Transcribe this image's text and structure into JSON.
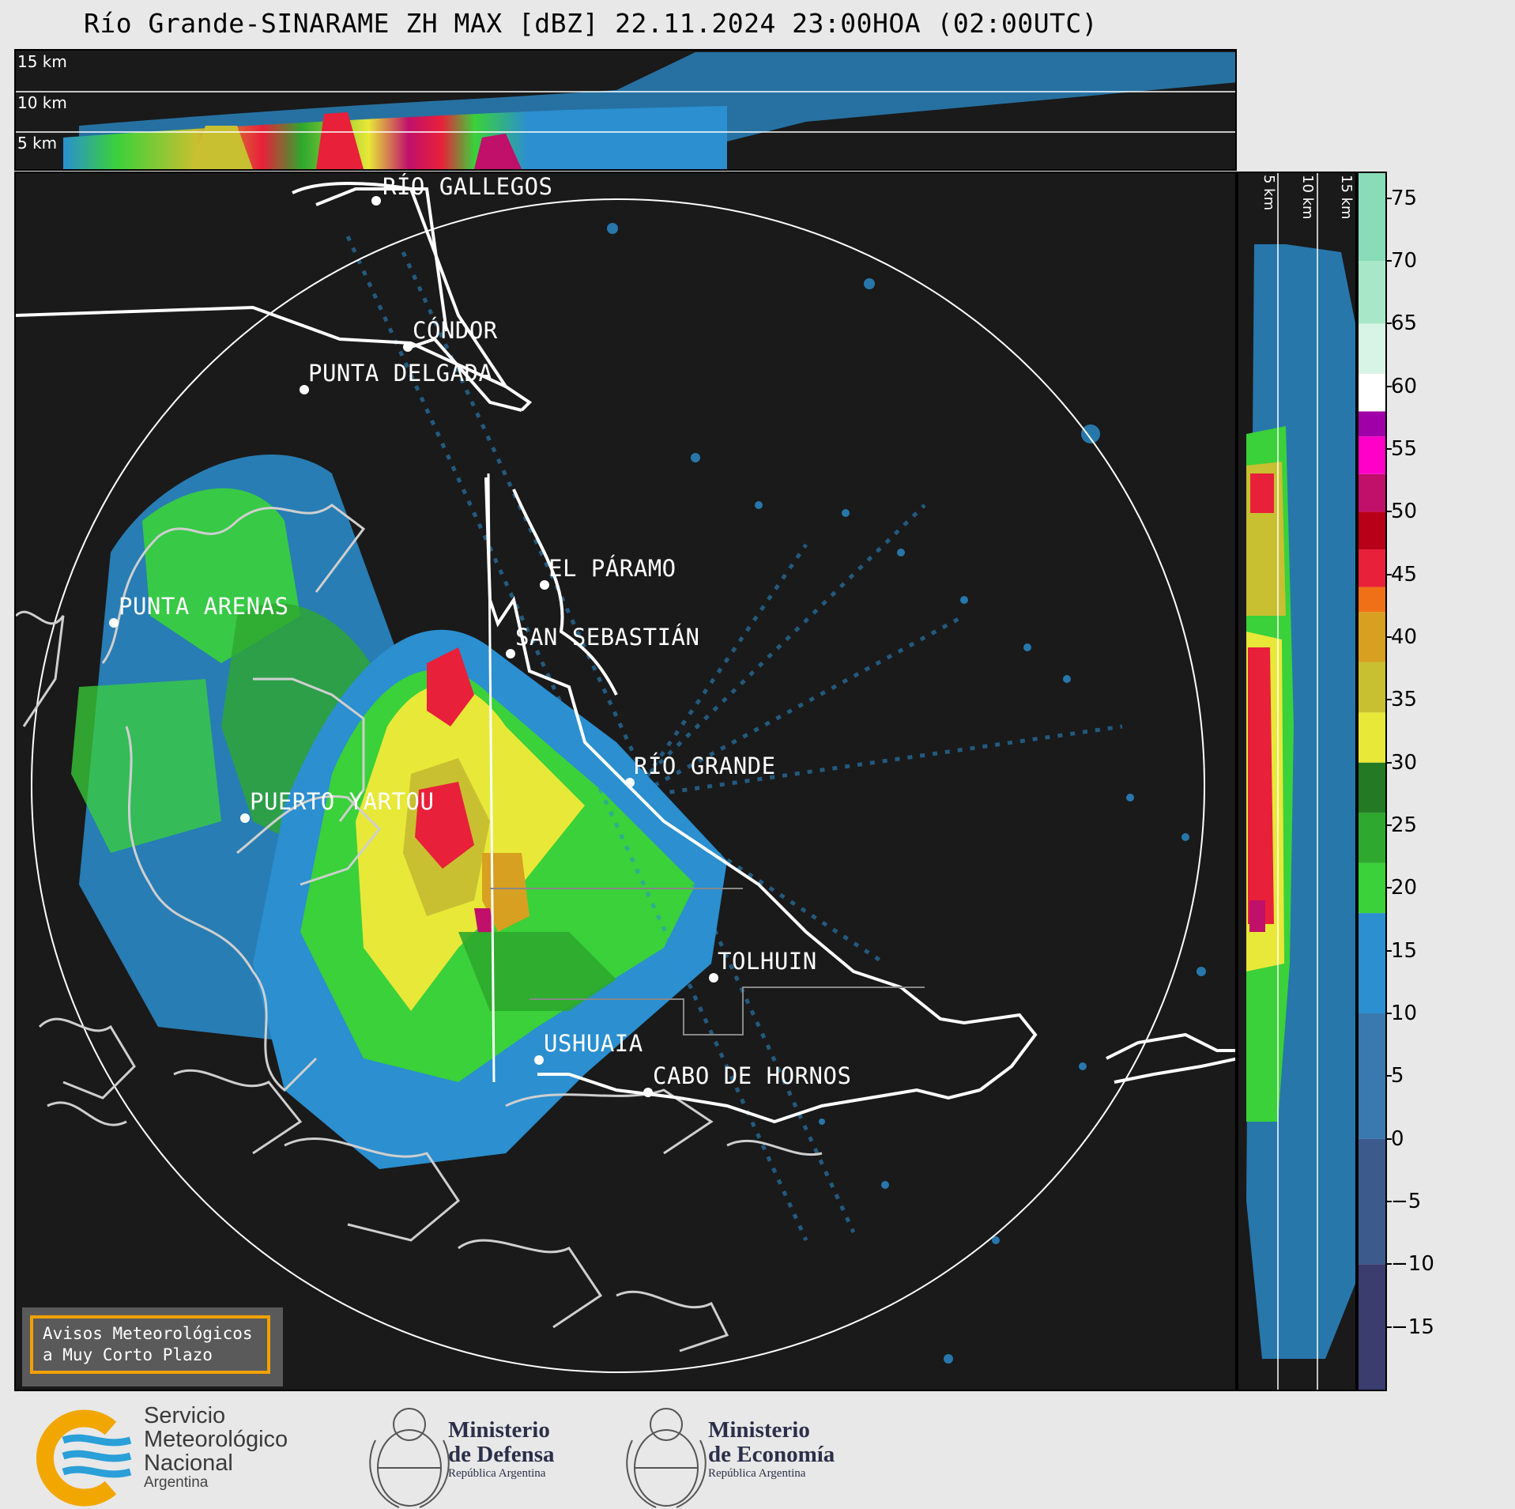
{
  "title": "Río Grande-SINARAME ZH MAX [dBZ] 22.11.2024 23:00HOA (02:00UTC)",
  "height_labels": [
    "15 km",
    "10 km",
    "5 km"
  ],
  "cities": [
    {
      "name": "RÍO GALLEGOS"
    },
    {
      "name": "CÓNDOR"
    },
    {
      "name": "PUNTA DELGADA"
    },
    {
      "name": "EL PÁRAMO"
    },
    {
      "name": "PUNTA ARENAS"
    },
    {
      "name": "SAN SEBASTIÁN"
    },
    {
      "name": "RÍO GRANDE"
    },
    {
      "name": "PUERTO YARTOU"
    },
    {
      "name": "TOLHUIN"
    },
    {
      "name": "USHUAIA"
    },
    {
      "name": "CABO DE HORNOS"
    }
  ],
  "colorbar": {
    "ticks": [
      "75",
      "70",
      "65",
      "60",
      "55",
      "50",
      "45",
      "40",
      "35",
      "30",
      "25",
      "20",
      "15",
      "10",
      "5",
      "0",
      "−5",
      "−10",
      "−15"
    ],
    "min": -20,
    "max": 77,
    "stops": [
      {
        "from": -20,
        "color": "#3a3d6e"
      },
      {
        "from": -10,
        "color": "#3d5a8c"
      },
      {
        "from": 0,
        "color": "#3a78b0"
      },
      {
        "from": 10,
        "color": "#2b8fd0"
      },
      {
        "from": 18,
        "color": "#3ad13a"
      },
      {
        "from": 22,
        "color": "#2ea82e"
      },
      {
        "from": 26,
        "color": "#247a24"
      },
      {
        "from": 30,
        "color": "#e8e838"
      },
      {
        "from": 34,
        "color": "#c8c030"
      },
      {
        "from": 38,
        "color": "#d8a020"
      },
      {
        "from": 42,
        "color": "#f07018"
      },
      {
        "from": 44,
        "color": "#e8203a"
      },
      {
        "from": 47,
        "color": "#b80018"
      },
      {
        "from": 50,
        "color": "#c0106a"
      },
      {
        "from": 53,
        "color": "#ff00c8"
      },
      {
        "from": 56,
        "color": "#a000a8"
      },
      {
        "from": 58,
        "color": "#ffffff"
      },
      {
        "from": 61,
        "color": "#d8f4e6"
      },
      {
        "from": 65,
        "color": "#a8e8c8"
      },
      {
        "from": 70,
        "color": "#88dcb8"
      }
    ]
  },
  "alert": {
    "line1": "Avisos Meteorológicos",
    "line2": "a Muy Corto Plazo"
  },
  "footer": {
    "smn": {
      "line1": "Servicio",
      "line2": "Meteorológico",
      "line3": "Nacional",
      "line4": "Argentina"
    },
    "defensa": {
      "line1": "Ministerio",
      "line2": "de Defensa",
      "sub": "República Argentina"
    },
    "economia": {
      "line1": "Ministerio",
      "line2": "de Economía",
      "sub": "República Argentina"
    }
  }
}
